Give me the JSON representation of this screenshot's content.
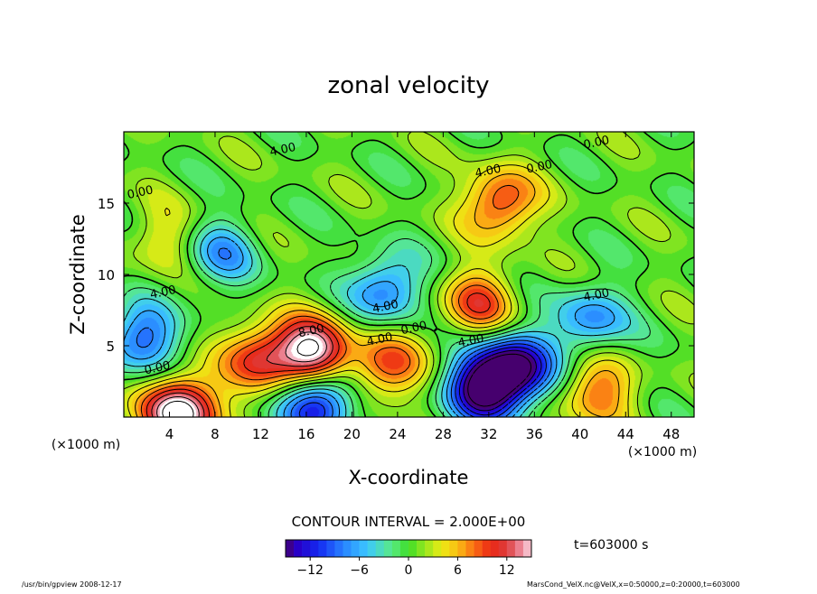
{
  "chart_data": {
    "type": "heatmap",
    "title": "zonal velocity",
    "xlabel": "X-coordinate",
    "ylabel": "Z-coordinate",
    "x_unit_left": "(×1000 m)",
    "x_unit_right": "(×1000 m)",
    "xlim": [
      0,
      50
    ],
    "ylim": [
      0,
      20
    ],
    "xticks": [
      4,
      8,
      12,
      16,
      20,
      24,
      28,
      32,
      36,
      40,
      44,
      48
    ],
    "yticks": [
      5,
      10,
      15
    ],
    "contour_interval_text": "CONTOUR INTERVAL = 2.000E+00",
    "time_text": "t=603000 s",
    "colorbar": {
      "range": [
        -15,
        15
      ],
      "ticks": [
        -12,
        -6,
        0,
        6,
        12
      ],
      "tick_labels": [
        "−12",
        "−6",
        "0",
        "6",
        "12"
      ]
    },
    "contour_labels": [
      {
        "text": "4.00",
        "x": 14,
        "y": 18.5
      },
      {
        "text": "0.00",
        "x": 1.5,
        "y": 15.5
      },
      {
        "text": "4.00",
        "x": 3.5,
        "y": 8.5
      },
      {
        "text": "0.00",
        "x": 3,
        "y": 3.2
      },
      {
        "text": "8.00",
        "x": 16.5,
        "y": 5.8
      },
      {
        "text": "4.00",
        "x": 23,
        "y": 7.5
      },
      {
        "text": "4.00",
        "x": 22.5,
        "y": 5.2
      },
      {
        "text": "0.00",
        "x": 25.5,
        "y": 6
      },
      {
        "text": "4.00",
        "x": 30.5,
        "y": 5.1
      },
      {
        "text": "4.00",
        "x": 32,
        "y": 17
      },
      {
        "text": "0.00",
        "x": 36.5,
        "y": 17.3
      },
      {
        "text": "4.00",
        "x": 41.5,
        "y": 8.3
      },
      {
        "text": "0.00",
        "x": 41.5,
        "y": 19
      }
    ],
    "extrema": [
      {
        "x": 5,
        "y": 0.4,
        "value": 18
      },
      {
        "x": 16.5,
        "y": 4.5,
        "value": 16
      },
      {
        "x": 31.5,
        "y": 2,
        "value": -17
      },
      {
        "x": 34.5,
        "y": 3.5,
        "value": -16
      },
      {
        "x": 17,
        "y": 1,
        "value": -14
      },
      {
        "x": 33,
        "y": 15,
        "value": 10
      },
      {
        "x": 12,
        "y": 4.2,
        "value": 10
      },
      {
        "x": 23,
        "y": 3.5,
        "value": 9
      },
      {
        "x": 41.5,
        "y": 1.8,
        "value": 8
      },
      {
        "x": 1.5,
        "y": 5.5,
        "value": -10
      },
      {
        "x": 23,
        "y": 9,
        "value": -9
      },
      {
        "x": 41,
        "y": 6.8,
        "value": -8
      },
      {
        "x": 8.5,
        "y": 11.5,
        "value": -7
      },
      {
        "x": 3.5,
        "y": 12.5,
        "value": 4
      },
      {
        "x": 31,
        "y": 8,
        "value": 9
      }
    ]
  },
  "footer": {
    "left": "/usr/bin/gpview  2008-12-17",
    "right": "MarsCond_VelX.nc@VelX,x=0:50000,z=0:20000,t=603000"
  }
}
